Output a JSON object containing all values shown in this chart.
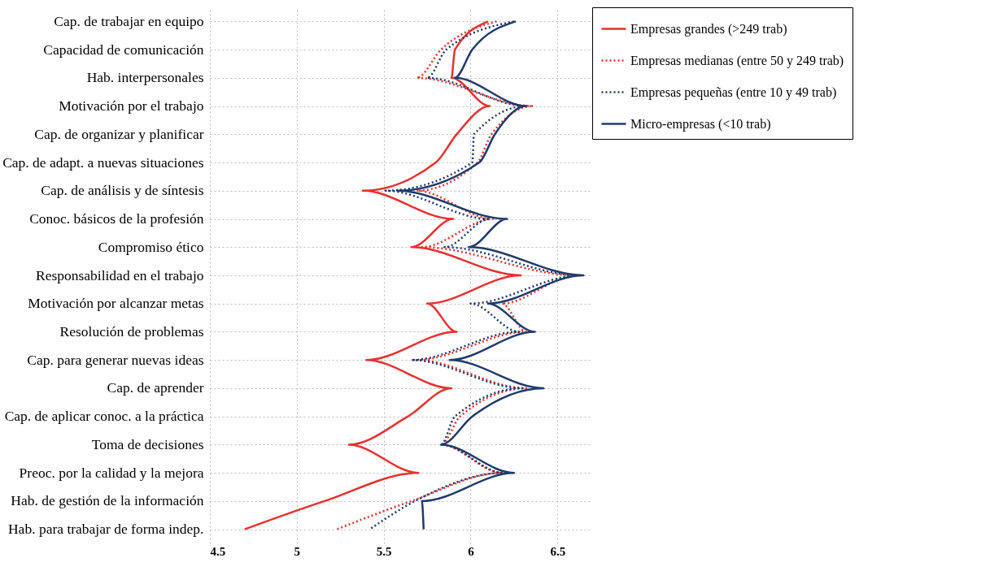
{
  "chart_data": {
    "type": "line",
    "orientation": "horizontal",
    "categories": [
      "Cap. de trabajar en equipo",
      "Capacidad de comunicación",
      "Hab. interpersonales",
      "Motivación por el trabajo",
      "Cap. de organizar y planificar",
      "Cap. de adapt. a nuevas situaciones",
      "Cap. de análisis y de síntesis",
      "Conoc. básicos de la profesión",
      "Compromiso ético",
      "Responsabilidad en el trabajo",
      "Motivación por alcanzar metas",
      "Resolución de problemas",
      "Cap. para generar nuevas ideas",
      "Cap. de aprender",
      "Cap. de aplicar conoc. a la práctica",
      "Toma de decisiones",
      "Preoc. por la calidad y la mejora",
      "Hab. de gestión de la información",
      "Hab. para trabajar de forma indep."
    ],
    "series": [
      {
        "name": "Empresas grandes (>249 trab)",
        "color": "#e8302f",
        "line_style": "solid",
        "values": [
          6.1,
          5.91,
          5.89,
          6.11,
          5.92,
          5.8,
          5.38,
          5.9,
          5.66,
          6.29,
          5.75,
          5.92,
          5.4,
          5.89,
          5.64,
          5.3,
          5.7,
          5.16,
          4.7
        ]
      },
      {
        "name": "Empresas medianas (entre 50 y 249 trab)",
        "color": "#e8302f",
        "line_style": "dotted",
        "values": [
          6.15,
          5.83,
          5.69,
          6.36,
          6.12,
          6.04,
          5.69,
          6.13,
          5.72,
          6.61,
          6.18,
          6.32,
          5.69,
          6.32,
          5.94,
          5.83,
          6.18,
          5.66,
          5.23
        ]
      },
      {
        "name": "Empresas pequeñas (entre 10 y 49 trab)",
        "color": "#1f3a6b",
        "line_style": "dotted",
        "values": [
          6.25,
          5.86,
          5.75,
          6.32,
          6.02,
          6.01,
          5.51,
          6.11,
          5.85,
          6.63,
          6.0,
          6.28,
          5.66,
          6.3,
          5.91,
          5.83,
          6.19,
          5.68,
          5.42
        ]
      },
      {
        "name": "Micro-empresas (<10 trab)",
        "color": "#1f3a6b",
        "line_style": "solid",
        "values": [
          6.26,
          6.01,
          5.91,
          6.32,
          6.14,
          6.05,
          5.58,
          6.21,
          5.99,
          6.65,
          6.1,
          6.37,
          5.88,
          6.42,
          6.01,
          5.83,
          6.25,
          5.72,
          5.73
        ]
      }
    ],
    "xlim": [
      4.5,
      6.7
    ],
    "xticks": [
      4.5,
      5,
      5.5,
      6,
      6.5
    ],
    "grid": true,
    "legend": "top right",
    "marker": "none"
  }
}
